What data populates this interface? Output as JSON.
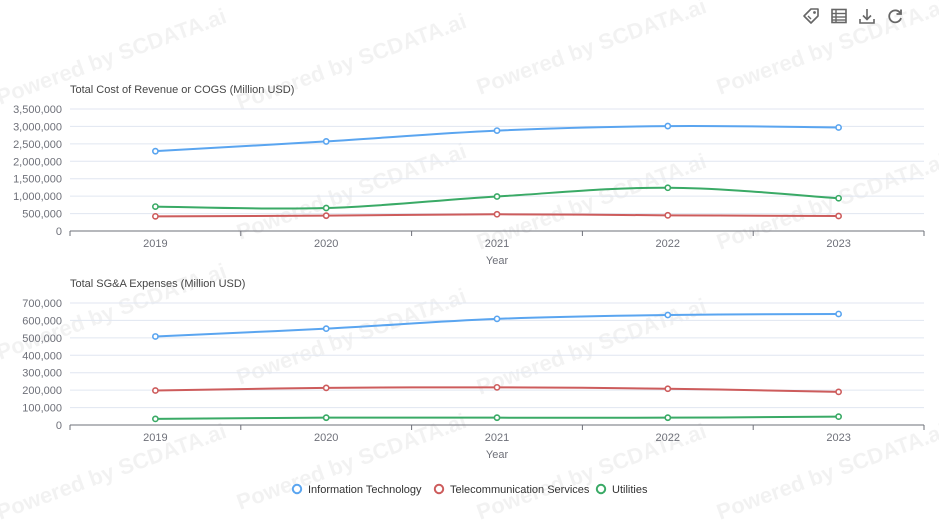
{
  "watermark": "Powered by SCDATA.ai",
  "toolbox": {
    "icons": [
      "tag-icon",
      "data-view-icon",
      "download-icon",
      "refresh-icon"
    ]
  },
  "chart_data": [
    {
      "type": "line",
      "title": "Total Cost of Revenue or COGS (Million USD)",
      "xlabel": "Year",
      "ylabel": "",
      "categories": [
        "2019",
        "2020",
        "2021",
        "2022",
        "2023"
      ],
      "ylim": [
        0,
        3500000
      ],
      "yticks": [
        "0",
        "500,000",
        "1,000,000",
        "1,500,000",
        "2,000,000",
        "2,500,000",
        "3,000,000",
        "3,500,000"
      ],
      "series": [
        {
          "name": "Information Technology",
          "color": "#5aa5f0",
          "values": [
            2290000,
            2570000,
            2880000,
            3010000,
            2970000
          ]
        },
        {
          "name": "Telecommunication Services",
          "color": "#cd5c5c",
          "values": [
            420000,
            440000,
            480000,
            450000,
            430000
          ]
        },
        {
          "name": "Utilities",
          "color": "#3aaa66",
          "values": [
            700000,
            660000,
            990000,
            1240000,
            940000
          ]
        }
      ],
      "grid": true,
      "legend": "bottom-center"
    },
    {
      "type": "line",
      "title": "Total SG&A Expenses (Million USD)",
      "xlabel": "Year",
      "ylabel": "",
      "categories": [
        "2019",
        "2020",
        "2021",
        "2022",
        "2023"
      ],
      "ylim": [
        0,
        700000
      ],
      "yticks": [
        "0",
        "100,000",
        "200,000",
        "300,000",
        "400,000",
        "500,000",
        "600,000",
        "700,000"
      ],
      "series": [
        {
          "name": "Information Technology",
          "color": "#5aa5f0",
          "values": [
            508000,
            553000,
            609000,
            631000,
            637000
          ]
        },
        {
          "name": "Telecommunication Services",
          "color": "#cd5c5c",
          "values": [
            198000,
            213000,
            216000,
            208000,
            190000
          ]
        },
        {
          "name": "Utilities",
          "color": "#3aaa66",
          "values": [
            35000,
            42000,
            42000,
            42000,
            48000
          ]
        }
      ],
      "grid": true,
      "legend": "bottom-center"
    }
  ],
  "legend": {
    "items": [
      {
        "name": "Information Technology",
        "color": "#5aa5f0"
      },
      {
        "name": "Telecommunication Services",
        "color": "#cd5c5c"
      },
      {
        "name": "Utilities",
        "color": "#3aaa66"
      }
    ]
  }
}
